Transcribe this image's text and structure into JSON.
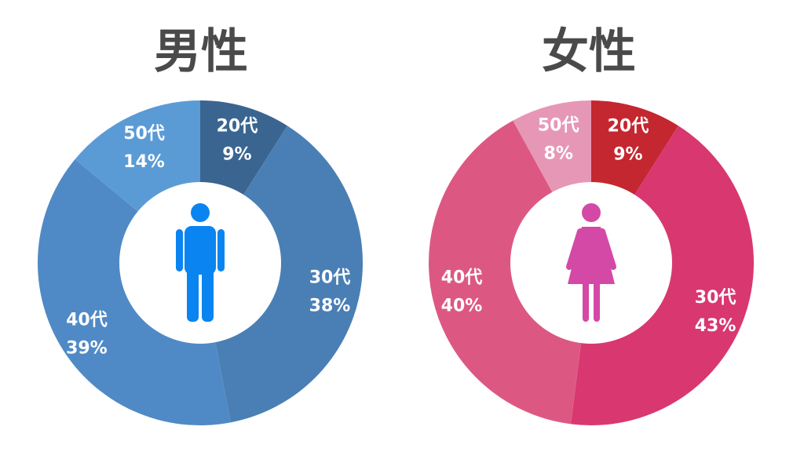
{
  "chart_data": [
    {
      "type": "pie",
      "variant": "donut",
      "title": "男性",
      "categories": [
        "20代",
        "30代",
        "40代",
        "50代"
      ],
      "values": [
        9,
        38,
        39,
        14
      ],
      "value_labels": [
        "9%",
        "38%",
        "39%",
        "14%"
      ],
      "colors": [
        "#3b6591",
        "#4a7fb5",
        "#4f8ac6",
        "#5a9bd6"
      ],
      "center_icon": "male-person-icon",
      "icon_color": "#0a84f0"
    },
    {
      "type": "pie",
      "variant": "donut",
      "title": "女性",
      "categories": [
        "20代",
        "30代",
        "40代",
        "50代"
      ],
      "values": [
        9,
        43,
        40,
        8
      ],
      "value_labels": [
        "9%",
        "43%",
        "40%",
        "8%"
      ],
      "colors": [
        "#c4272f",
        "#d93770",
        "#dc5882",
        "#e797b6"
      ],
      "center_icon": "female-person-icon",
      "icon_color": "#d449a6"
    }
  ]
}
